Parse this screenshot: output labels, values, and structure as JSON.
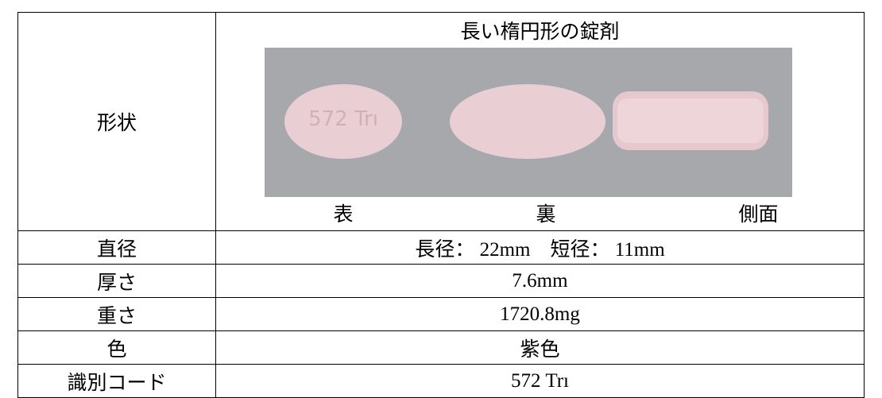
{
  "table": {
    "shape": {
      "label": "形状",
      "description": "長い楕円形の錠剤",
      "views": [
        "表",
        "裏",
        "側面"
      ]
    },
    "rows": [
      [
        "直径",
        "長径： 22mm　短径： 11mm"
      ],
      [
        "厚さ",
        "7.6mm"
      ],
      [
        "重さ",
        "1720.8mg"
      ],
      [
        "色",
        "紫色"
      ],
      [
        "識別コード",
        "572 Trı"
      ]
    ]
  }
}
